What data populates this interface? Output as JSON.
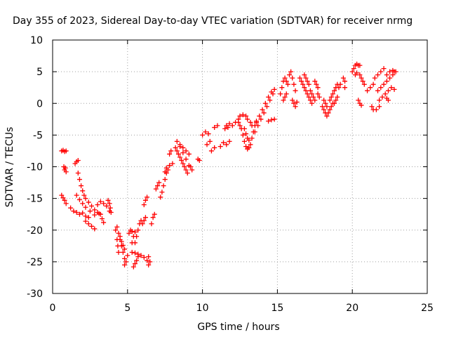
{
  "chart_data": {
    "type": "scatter",
    "title": "Day 355 of 2023, Sidereal Day-to-day VTEC variation (SDTVAR) for receiver nrmg",
    "xlabel": "GPS time / hours",
    "ylabel": "SDTVAR / TECUs",
    "xlim": [
      0,
      25
    ],
    "ylim": [
      -30,
      10
    ],
    "xticks": [
      0,
      5,
      10,
      15,
      20,
      25
    ],
    "yticks": [
      -30,
      -25,
      -20,
      -15,
      -10,
      -5,
      0,
      5,
      10
    ],
    "grid": true,
    "marker": "plus",
    "color": "#ff0000",
    "series": [
      {
        "points": [
          [
            0.6,
            -7.5
          ],
          [
            0.7,
            -7.4
          ],
          [
            0.8,
            -7.6
          ],
          [
            0.9,
            -7.5
          ],
          [
            0.6,
            -14.5
          ],
          [
            0.7,
            -14.9
          ],
          [
            0.8,
            -15.3
          ],
          [
            0.9,
            -15.8
          ],
          [
            0.75,
            -10.0
          ],
          [
            0.8,
            -10.5
          ],
          [
            0.85,
            -10.2
          ],
          [
            0.9,
            -10.8
          ],
          [
            1.2,
            -16.5
          ],
          [
            1.4,
            -17.0
          ],
          [
            1.6,
            -17.2
          ],
          [
            1.8,
            -17.5
          ],
          [
            2.0,
            -17.3
          ],
          [
            2.2,
            -17.8
          ],
          [
            2.4,
            -18.0
          ],
          [
            1.5,
            -9.5
          ],
          [
            1.6,
            -9.2
          ],
          [
            1.7,
            -9.0
          ],
          [
            1.7,
            -11.0
          ],
          [
            1.8,
            -12.0
          ],
          [
            1.9,
            -13.0
          ],
          [
            2.0,
            -13.8
          ],
          [
            2.1,
            -14.5
          ],
          [
            2.2,
            -15.0
          ],
          [
            2.4,
            -15.6
          ],
          [
            2.6,
            -16.2
          ],
          [
            2.8,
            -16.8
          ],
          [
            3.0,
            -17.2
          ],
          [
            3.1,
            -17.4
          ],
          [
            1.6,
            -14.5
          ],
          [
            1.8,
            -15.2
          ],
          [
            2.0,
            -15.8
          ],
          [
            2.2,
            -16.4
          ],
          [
            2.5,
            -17.0
          ],
          [
            2.8,
            -17.6
          ],
          [
            2.2,
            -18.6
          ],
          [
            2.4,
            -19.0
          ],
          [
            2.6,
            -19.4
          ],
          [
            2.8,
            -19.8
          ],
          [
            3.0,
            -16.0
          ],
          [
            3.2,
            -15.5
          ],
          [
            3.4,
            -15.8
          ],
          [
            3.6,
            -16.2
          ],
          [
            3.8,
            -17.0
          ],
          [
            3.2,
            -17.5
          ],
          [
            3.3,
            -18.2
          ],
          [
            3.4,
            -18.8
          ],
          [
            3.7,
            -15.3
          ],
          [
            3.8,
            -15.8
          ],
          [
            3.85,
            -16.5
          ],
          [
            3.9,
            -17.2
          ],
          [
            4.3,
            -19.5
          ],
          [
            4.4,
            -20.5
          ],
          [
            4.5,
            -21.5
          ],
          [
            4.6,
            -22.5
          ],
          [
            4.7,
            -23.5
          ],
          [
            4.8,
            -24.5
          ],
          [
            4.9,
            -25.0
          ],
          [
            4.2,
            -20.0
          ],
          [
            4.3,
            -21.5
          ],
          [
            4.35,
            -22.5
          ],
          [
            4.4,
            -23.5
          ],
          [
            4.5,
            -21.0
          ],
          [
            4.6,
            -21.8
          ],
          [
            4.7,
            -22.4
          ],
          [
            4.8,
            -23.0
          ],
          [
            4.8,
            -25.5
          ],
          [
            5.0,
            -24.0
          ],
          [
            5.1,
            -20.5
          ],
          [
            5.2,
            -20.0
          ],
          [
            5.3,
            -20.2
          ],
          [
            5.3,
            -23.5
          ],
          [
            5.5,
            -23.6
          ],
          [
            5.7,
            -23.8
          ],
          [
            5.9,
            -24.0
          ],
          [
            6.1,
            -24.3
          ],
          [
            5.4,
            -25.8
          ],
          [
            5.5,
            -25.3
          ],
          [
            5.6,
            -24.8
          ],
          [
            5.7,
            -24.2
          ],
          [
            5.5,
            -22.0
          ],
          [
            5.6,
            -21.0
          ],
          [
            5.7,
            -20.0
          ],
          [
            5.8,
            -19.0
          ],
          [
            5.9,
            -18.5
          ],
          [
            5.3,
            -22.0
          ],
          [
            5.4,
            -21.0
          ],
          [
            5.5,
            -20.3
          ],
          [
            6.0,
            -19.0
          ],
          [
            6.1,
            -18.5
          ],
          [
            6.2,
            -18.0
          ],
          [
            6.1,
            -16.0
          ],
          [
            6.2,
            -15.3
          ],
          [
            6.3,
            -14.8
          ],
          [
            6.3,
            -24.8
          ],
          [
            6.4,
            -25.5
          ],
          [
            6.5,
            -25.0
          ],
          [
            6.4,
            -24.2
          ],
          [
            6.6,
            -19.0
          ],
          [
            6.7,
            -18.0
          ],
          [
            6.8,
            -17.5
          ],
          [
            6.9,
            -13.5
          ],
          [
            7.0,
            -13.0
          ],
          [
            7.1,
            -12.5
          ],
          [
            7.2,
            -14.8
          ],
          [
            7.3,
            -14.0
          ],
          [
            7.4,
            -13.0
          ],
          [
            7.5,
            -12.0
          ],
          [
            7.6,
            -11.0
          ],
          [
            7.7,
            -10.5
          ],
          [
            7.5,
            -10.8
          ],
          [
            7.6,
            -10.2
          ],
          [
            7.8,
            -9.8
          ],
          [
            8.0,
            -9.5
          ],
          [
            7.8,
            -8.0
          ],
          [
            7.9,
            -7.5
          ],
          [
            8.2,
            -7.0
          ],
          [
            8.3,
            -7.5
          ],
          [
            8.4,
            -8.0
          ],
          [
            8.5,
            -8.5
          ],
          [
            8.6,
            -9.0
          ],
          [
            8.7,
            -9.5
          ],
          [
            8.8,
            -10.0
          ],
          [
            8.9,
            -10.5
          ],
          [
            9.0,
            -11.0
          ],
          [
            8.3,
            -6.0
          ],
          [
            8.5,
            -6.5
          ],
          [
            8.7,
            -7.0
          ],
          [
            8.9,
            -7.5
          ],
          [
            9.1,
            -8.0
          ],
          [
            8.5,
            -6.8
          ],
          [
            8.7,
            -7.8
          ],
          [
            8.9,
            -8.8
          ],
          [
            9.1,
            -9.8
          ],
          [
            9.2,
            -10.0
          ],
          [
            9.3,
            -10.5
          ],
          [
            9.7,
            -8.8
          ],
          [
            9.8,
            -9.0
          ],
          [
            10.0,
            -5.0
          ],
          [
            10.2,
            -4.5
          ],
          [
            10.4,
            -4.8
          ],
          [
            10.3,
            -6.5
          ],
          [
            10.5,
            -6.0
          ],
          [
            10.6,
            -7.5
          ],
          [
            10.8,
            -7.0
          ],
          [
            10.8,
            -3.8
          ],
          [
            11.0,
            -3.5
          ],
          [
            11.2,
            -6.8
          ],
          [
            11.4,
            -6.2
          ],
          [
            11.6,
            -6.5
          ],
          [
            11.8,
            -6.0
          ],
          [
            11.5,
            -4.0
          ],
          [
            11.6,
            -3.5
          ],
          [
            11.7,
            -3.8
          ],
          [
            11.8,
            -3.2
          ],
          [
            12.0,
            -3.5
          ],
          [
            12.2,
            -3.0
          ],
          [
            12.4,
            -3.0
          ],
          [
            12.4,
            -2.5
          ],
          [
            12.5,
            -2.0
          ],
          [
            12.7,
            -1.8
          ],
          [
            12.9,
            -2.0
          ],
          [
            13.0,
            -2.5
          ],
          [
            13.2,
            -3.0
          ],
          [
            13.3,
            -3.5
          ],
          [
            12.5,
            -3.5
          ],
          [
            12.6,
            -4.0
          ],
          [
            12.7,
            -5.0
          ],
          [
            12.8,
            -6.0
          ],
          [
            12.9,
            -6.8
          ],
          [
            13.0,
            -7.2
          ],
          [
            13.1,
            -7.0
          ],
          [
            13.2,
            -6.5
          ],
          [
            13.3,
            -5.5
          ],
          [
            13.4,
            -4.5
          ],
          [
            13.5,
            -3.5
          ],
          [
            13.6,
            -2.8
          ],
          [
            12.8,
            -4.0
          ],
          [
            12.9,
            -4.8
          ],
          [
            13.0,
            -5.5
          ],
          [
            13.1,
            -5.8
          ],
          [
            13.5,
            -4.5
          ],
          [
            13.7,
            -3.5
          ],
          [
            13.9,
            -2.5
          ],
          [
            14.1,
            -1.5
          ],
          [
            14.3,
            -0.5
          ],
          [
            14.5,
            0.5
          ],
          [
            14.7,
            1.5
          ],
          [
            13.6,
            -3.0
          ],
          [
            13.8,
            -2.0
          ],
          [
            14.0,
            -1.0
          ],
          [
            14.2,
            0.0
          ],
          [
            14.4,
            1.0
          ],
          [
            14.6,
            1.8
          ],
          [
            14.8,
            2.2
          ],
          [
            14.4,
            -2.8
          ],
          [
            14.6,
            -2.6
          ],
          [
            14.8,
            -2.5
          ],
          [
            15.2,
            1.5
          ],
          [
            15.3,
            2.5
          ],
          [
            15.4,
            3.5
          ],
          [
            15.5,
            4.0
          ],
          [
            15.6,
            3.5
          ],
          [
            15.7,
            3.0
          ],
          [
            15.4,
            0.5
          ],
          [
            15.5,
            1.0
          ],
          [
            15.6,
            1.5
          ],
          [
            15.8,
            4.5
          ],
          [
            15.9,
            5.0
          ],
          [
            16.0,
            4.0
          ],
          [
            16.1,
            3.0
          ],
          [
            16.2,
            2.0
          ],
          [
            16.0,
            0.5
          ],
          [
            16.1,
            0.0
          ],
          [
            16.2,
            -0.5
          ],
          [
            16.3,
            0.2
          ],
          [
            16.5,
            4.0
          ],
          [
            16.6,
            3.5
          ],
          [
            16.7,
            3.0
          ],
          [
            16.8,
            2.5
          ],
          [
            16.9,
            2.0
          ],
          [
            17.0,
            1.5
          ],
          [
            17.1,
            1.0
          ],
          [
            17.2,
            0.5
          ],
          [
            17.3,
            0.0
          ],
          [
            16.8,
            4.5
          ],
          [
            16.9,
            4.0
          ],
          [
            17.0,
            3.5
          ],
          [
            17.1,
            3.0
          ],
          [
            17.2,
            2.0
          ],
          [
            17.3,
            1.5
          ],
          [
            17.4,
            1.0
          ],
          [
            17.5,
            0.5
          ],
          [
            17.5,
            3.5
          ],
          [
            17.6,
            3.0
          ],
          [
            17.7,
            2.5
          ],
          [
            17.7,
            1.5
          ],
          [
            17.8,
            1.0
          ],
          [
            18.0,
            -0.5
          ],
          [
            18.1,
            -1.0
          ],
          [
            18.2,
            -1.5
          ],
          [
            18.3,
            -2.0
          ],
          [
            18.4,
            -1.5
          ],
          [
            18.5,
            -1.0
          ],
          [
            18.6,
            -0.5
          ],
          [
            18.7,
            0.0
          ],
          [
            18.1,
            0.5
          ],
          [
            18.2,
            0.0
          ],
          [
            18.3,
            -0.5
          ],
          [
            18.5,
            0.5
          ],
          [
            18.6,
            1.0
          ],
          [
            18.7,
            1.5
          ],
          [
            18.8,
            2.0
          ],
          [
            18.9,
            2.5
          ],
          [
            19.0,
            3.0
          ],
          [
            18.8,
            0.0
          ],
          [
            18.9,
            0.5
          ],
          [
            19.0,
            1.0
          ],
          [
            19.1,
            2.5
          ],
          [
            19.2,
            3.0
          ],
          [
            19.4,
            4.0
          ],
          [
            19.5,
            3.5
          ],
          [
            19.5,
            2.5
          ],
          [
            20.0,
            5.0
          ],
          [
            20.1,
            5.5
          ],
          [
            20.2,
            6.0
          ],
          [
            20.3,
            6.2
          ],
          [
            20.4,
            6.0
          ],
          [
            20.5,
            6.0
          ],
          [
            20.2,
            4.5
          ],
          [
            20.3,
            4.8
          ],
          [
            20.5,
            4.5
          ],
          [
            20.6,
            4.0
          ],
          [
            20.7,
            3.5
          ],
          [
            20.8,
            3.0
          ],
          [
            20.4,
            0.5
          ],
          [
            20.5,
            0.0
          ],
          [
            20.6,
            -0.3
          ],
          [
            21.0,
            2.0
          ],
          [
            21.2,
            2.5
          ],
          [
            21.4,
            3.0
          ],
          [
            21.3,
            -0.5
          ],
          [
            21.4,
            -1.0
          ],
          [
            21.5,
            4.0
          ],
          [
            21.7,
            4.5
          ],
          [
            21.9,
            5.0
          ],
          [
            22.1,
            5.5
          ],
          [
            21.8,
            0.5
          ],
          [
            22.0,
            1.0
          ],
          [
            22.2,
            1.5
          ],
          [
            22.4,
            2.0
          ],
          [
            22.6,
            2.5
          ],
          [
            22.8,
            2.2
          ],
          [
            21.6,
            -1.0
          ],
          [
            21.8,
            -0.5
          ],
          [
            21.7,
            2.0
          ],
          [
            21.9,
            2.5
          ],
          [
            22.1,
            3.0
          ],
          [
            22.3,
            3.5
          ],
          [
            22.5,
            4.0
          ],
          [
            22.7,
            4.5
          ],
          [
            22.8,
            5.0
          ],
          [
            22.3,
            4.5
          ],
          [
            22.5,
            5.0
          ],
          [
            22.7,
            5.2
          ],
          [
            22.9,
            5.0
          ],
          [
            22.3,
            0.8
          ],
          [
            22.4,
            0.5
          ]
        ]
      }
    ]
  }
}
